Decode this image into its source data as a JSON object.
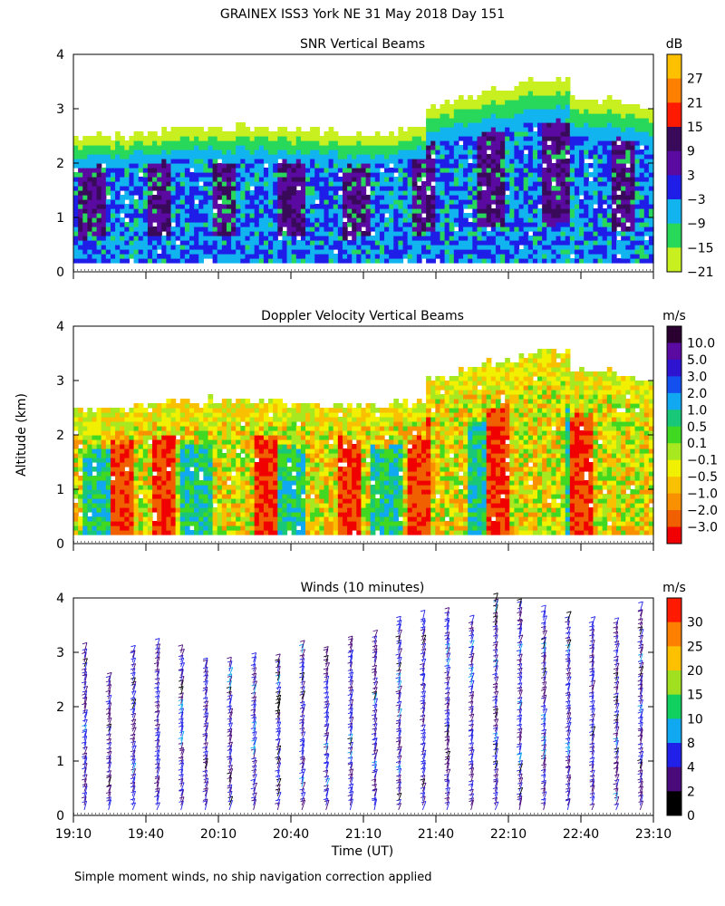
{
  "title": "GRAINEX ISS3 York NE  31 May 2018 Day 151",
  "ylabel": "Altitude (km)",
  "xlabel": "Time (UT)",
  "footnote": "Simple moment winds, no ship navigation correction applied",
  "x_ticks": [
    "19:10",
    "19:40",
    "20:10",
    "20:40",
    "21:10",
    "21:40",
    "22:10",
    "22:40",
    "23:10"
  ],
  "y_ticks": [
    "0",
    "1",
    "2",
    "3",
    "4"
  ],
  "chart_data": [
    {
      "type": "heatmap",
      "title": "SNR Vertical Beams",
      "units": "dB",
      "xlim": [
        "19:10",
        "23:10"
      ],
      "ylim": [
        0,
        4
      ],
      "colorbar": {
        "labels": [
          "27",
          "21",
          "15",
          "9",
          "3",
          "−3",
          "−9",
          "−15",
          "−21"
        ],
        "colors": [
          "#ffc000",
          "#ff7f00",
          "#ff1a00",
          "#3a0a5a",
          "#5a0aa0",
          "#1e1ee8",
          "#12b4f0",
          "#28d85a",
          "#c8f020"
        ]
      }
    },
    {
      "type": "heatmap",
      "title": "Doppler Velocity Vertical Beams",
      "units": "m/s",
      "xlim": [
        "19:10",
        "23:10"
      ],
      "ylim": [
        0,
        4
      ],
      "colorbar": {
        "labels": [
          "10.0",
          "5.0",
          "3.0",
          "2.0",
          "1.0",
          "0.5",
          "0.1",
          "−0.1",
          "−0.5",
          "−1.0",
          "−2.0",
          "−3.0"
        ],
        "colors": [
          "#2a0030",
          "#5a0aa0",
          "#2e14d0",
          "#1450f0",
          "#10a8f0",
          "#18c878",
          "#40d820",
          "#a8e820",
          "#f0f000",
          "#f8c000",
          "#f89000",
          "#f06000",
          "#f00000"
        ]
      }
    },
    {
      "type": "barbs",
      "title": "Winds (10 minutes)",
      "units": "m/s",
      "xlim": [
        "19:10",
        "23:10"
      ],
      "ylim": [
        0,
        4
      ],
      "colorbar": {
        "labels": [
          "30",
          "25",
          "20",
          "15",
          "10",
          "8",
          "4",
          "2",
          "0"
        ],
        "colors": [
          "#ff1a00",
          "#ff7f00",
          "#ffc000",
          "#a0e020",
          "#10d060",
          "#10a8f0",
          "#2020e8",
          "#4a0a7a",
          "#000000"
        ]
      },
      "profile_times": [
        "19:10",
        "19:20",
        "19:30",
        "19:40",
        "19:50",
        "20:00",
        "20:10",
        "20:20",
        "20:30",
        "20:40",
        "20:50",
        "21:00",
        "21:10",
        "21:20",
        "21:30",
        "21:40",
        "21:50",
        "22:00",
        "22:10",
        "22:20",
        "22:30",
        "22:40",
        "22:50",
        "23:00"
      ],
      "profile_top_km": [
        3.0,
        2.5,
        3.0,
        3.1,
        3.0,
        2.8,
        2.8,
        2.9,
        2.9,
        3.1,
        3.0,
        3.2,
        3.3,
        3.5,
        3.6,
        3.7,
        3.5,
        4.0,
        3.9,
        3.7,
        3.6,
        3.5,
        3.5,
        3.8
      ]
    }
  ]
}
